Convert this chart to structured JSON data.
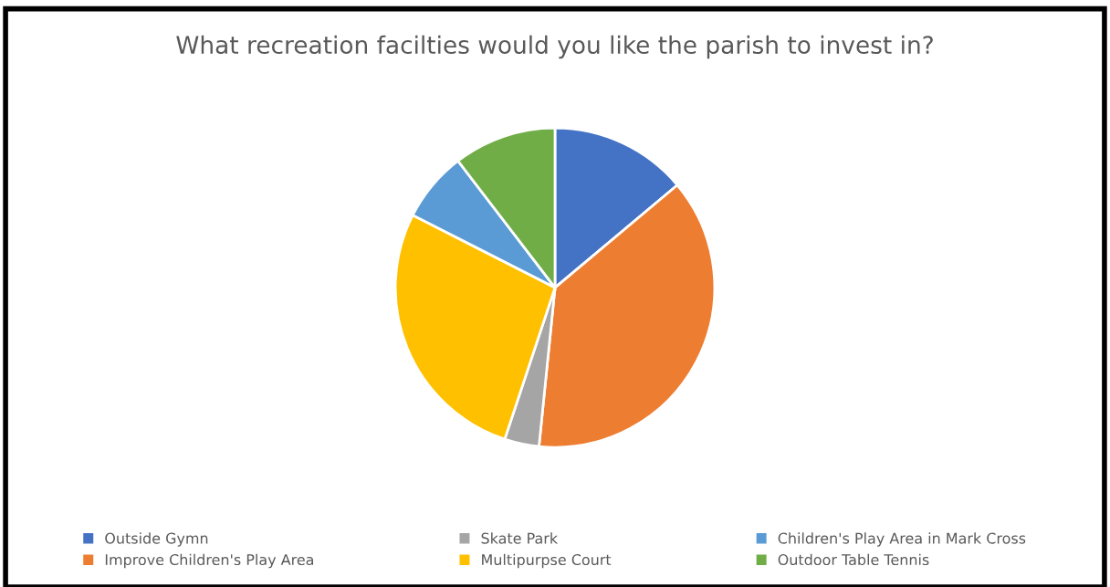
{
  "chart_data": {
    "type": "pie",
    "title": "What recreation facilties would you like the parish to invest in?",
    "categories": [
      "Outside Gymn",
      "Improve Children's Play Area",
      "Skate Park",
      "Multipurpse Court",
      "Children's Play Area in Mark Cross",
      "Outdoor Table Tennis"
    ],
    "values": [
      13.9,
      37.7,
      3.5,
      27.4,
      7.1,
      10.4
    ],
    "colors": [
      "#4472c4",
      "#ed7d31",
      "#a5a5a5",
      "#ffc000",
      "#5b9bd5",
      "#70ad47"
    ],
    "legend": "bottom"
  }
}
